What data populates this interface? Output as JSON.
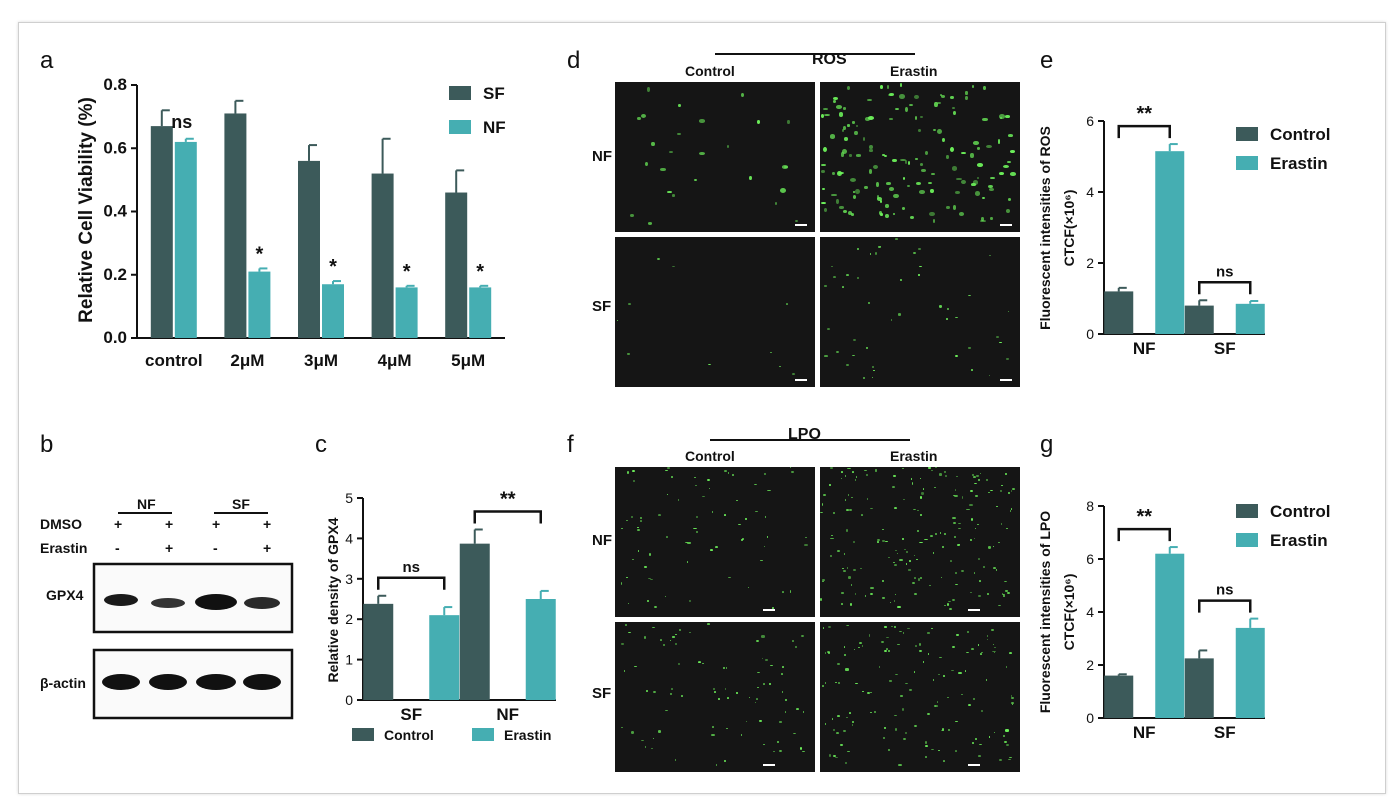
{
  "panel_labels": {
    "a": "a",
    "b": "b",
    "c": "c",
    "d": "d",
    "e": "e",
    "f": "f",
    "g": "g"
  },
  "colors": {
    "dark": "#3c5a5a",
    "teal": "#45aeb2",
    "green_spots": "#6cf05a"
  },
  "chart_data": [
    {
      "id": "a",
      "type": "bar",
      "ylabel": "Relative Cell Viability (%)",
      "categories": [
        "control",
        "2μM",
        "3μM",
        "4μM",
        "5μM"
      ],
      "ylim": [
        0,
        0.8
      ],
      "yticks": [
        "0.0",
        "0.2",
        "0.4",
        "0.6",
        "0.8"
      ],
      "legend_position": "top-right",
      "series": [
        {
          "name": "SF",
          "values": [
            0.67,
            0.71,
            0.56,
            0.52,
            0.46
          ],
          "errors": [
            0.05,
            0.04,
            0.05,
            0.11,
            0.07
          ]
        },
        {
          "name": "NF",
          "values": [
            0.62,
            0.21,
            0.17,
            0.16,
            0.16
          ],
          "errors": [
            0.01,
            0.01,
            0.01,
            0.005,
            0.005
          ]
        }
      ],
      "annotations": [
        "ns",
        "*",
        "*",
        "*",
        "*"
      ]
    },
    {
      "id": "c",
      "type": "bar",
      "ylabel": "Relative density of GPX4",
      "categories": [
        "SF",
        "NF"
      ],
      "ylim": [
        0,
        5
      ],
      "yticks": [
        "0",
        "1",
        "2",
        "3",
        "4",
        "5"
      ],
      "legend_position": "bottom",
      "series": [
        {
          "name": "Control",
          "values": [
            2.38,
            3.87
          ],
          "errors": [
            0.2,
            0.35
          ]
        },
        {
          "name": "Erastin",
          "values": [
            2.1,
            2.5
          ],
          "errors": [
            0.2,
            0.2
          ]
        }
      ],
      "annotations": [
        "ns",
        "**"
      ]
    },
    {
      "id": "e",
      "type": "bar",
      "ylabel": "Fluorescent intensities of ROS",
      "ylabel2": "CTCF(×10⁶)",
      "categories": [
        "NF",
        "SF"
      ],
      "ylim": [
        0,
        6
      ],
      "yticks": [
        "0",
        "2",
        "4",
        "6"
      ],
      "legend_position": "top-right",
      "series": [
        {
          "name": "Control",
          "values": [
            1.2,
            0.8
          ],
          "errors": [
            0.1,
            0.15
          ]
        },
        {
          "name": "Erastin",
          "values": [
            5.15,
            0.85
          ],
          "errors": [
            0.2,
            0.08
          ]
        }
      ],
      "annotations": [
        "**",
        "ns"
      ]
    },
    {
      "id": "g",
      "type": "bar",
      "ylabel": "Fluorescent intensities of LPO",
      "ylabel2": "CTCF(×10⁶)",
      "categories": [
        "NF",
        "SF"
      ],
      "ylim": [
        0,
        8
      ],
      "yticks": [
        "0",
        "2",
        "4",
        "6",
        "8"
      ],
      "legend_position": "top-right",
      "series": [
        {
          "name": "Control",
          "values": [
            1.6,
            2.25
          ],
          "errors": [
            0.05,
            0.3
          ]
        },
        {
          "name": "Erastin",
          "values": [
            6.2,
            3.4
          ],
          "errors": [
            0.25,
            0.35
          ]
        }
      ],
      "annotations": [
        "**",
        "ns"
      ]
    }
  ],
  "western": {
    "groups": [
      "NF",
      "SF"
    ],
    "rows": [
      {
        "label": "DMSO",
        "marks": [
          "+",
          "+",
          "+",
          "+"
        ]
      },
      {
        "label": "Erastin",
        "marks": [
          "-",
          "+",
          "-",
          "+"
        ]
      }
    ],
    "blots": [
      "GPX4",
      "β-actin"
    ]
  },
  "micro_d": {
    "title": "ROS",
    "cols": [
      "Control",
      "Erastin"
    ],
    "rows": [
      "NF",
      "SF"
    ]
  },
  "micro_f": {
    "title": "LPO",
    "cols": [
      "Control",
      "Erastin"
    ],
    "rows": [
      "NF",
      "SF"
    ]
  }
}
